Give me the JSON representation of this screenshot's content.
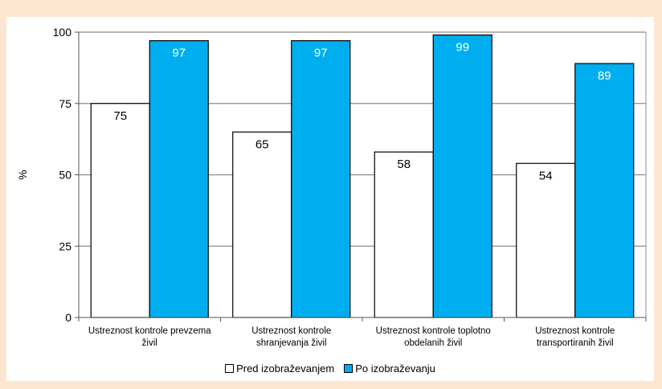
{
  "chart_data": {
    "type": "bar",
    "categories": [
      [
        "Ustreznost kontrole prevzema",
        "živil"
      ],
      [
        "Ustreznost kontrole",
        "shranjevanja živil"
      ],
      [
        "Ustreznost kontrole toplotno",
        "obdelanih živil"
      ],
      [
        "Ustreznost kontrole",
        "transportiranih živil"
      ]
    ],
    "series": [
      {
        "name": "Pred izobraževanjem",
        "values": [
          75,
          65,
          58,
          54
        ],
        "color": "#ffffff",
        "label_color": "#000000"
      },
      {
        "name": "Po izobraževanju",
        "values": [
          97,
          97,
          99,
          89
        ],
        "color": "#00aeef",
        "label_color": "#ffffff"
      }
    ],
    "ylabel": "%",
    "xlabel": "",
    "ylim": [
      0,
      100
    ],
    "yticks": [
      0,
      25,
      50,
      75,
      100
    ],
    "grid": true,
    "legend_position": "bottom"
  }
}
